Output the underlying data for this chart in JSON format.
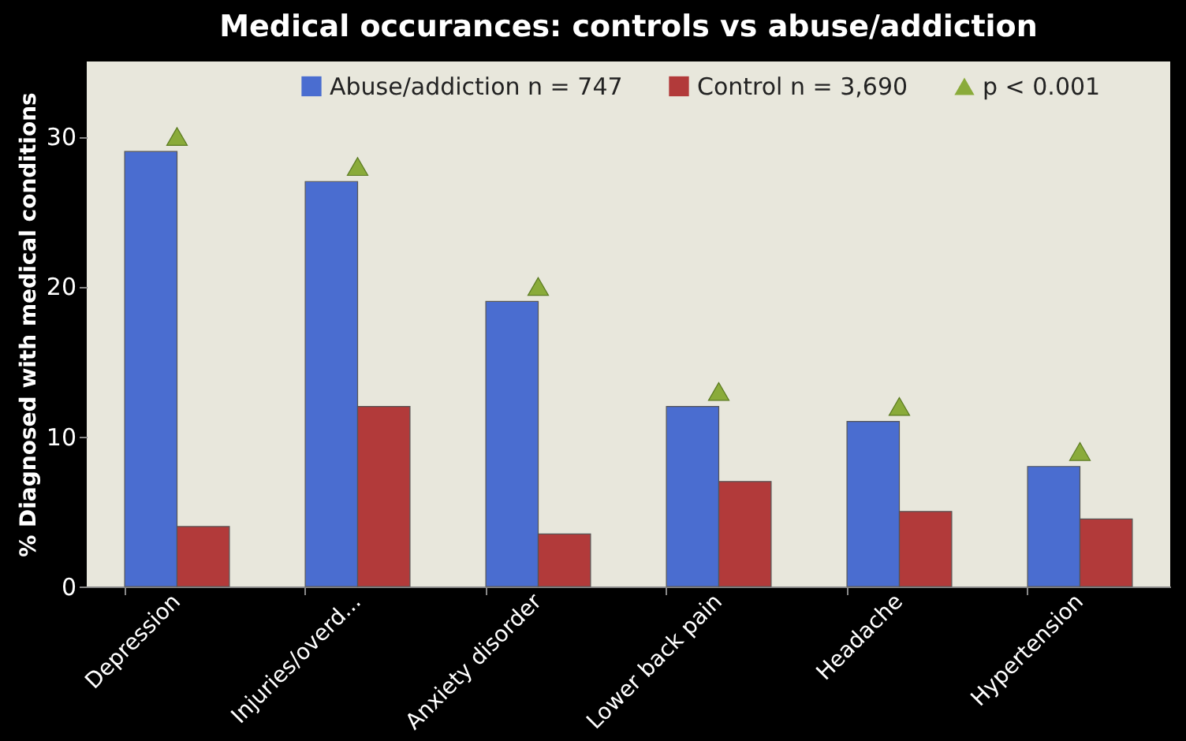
{
  "chart_data": {
    "type": "bar",
    "title": "Medical occurances: controls vs abuse/addiction",
    "ylabel": "% Diagnosed with medical conditions",
    "categories": [
      "Depression",
      "Injuries/overd...",
      "Anxiety disorder",
      "Lower back pain",
      "Headache",
      "Hypertension"
    ],
    "series": [
      {
        "name": "Abuse/addiction n = 747",
        "color": "#4a6dd0",
        "values": [
          29,
          27,
          19,
          12,
          11,
          8
        ]
      },
      {
        "name": "Control n = 3,690",
        "color": "#b23a3a",
        "values": [
          4,
          12,
          3.5,
          7,
          5,
          4.5
        ]
      },
      {
        "name": "p < 0.001",
        "type": "scatter",
        "marker": "triangle",
        "color": "#8aab3a",
        "x": [
          "Depression",
          "Injuries/overd...",
          "Anxiety disorder",
          "Lower back pain",
          "Headache",
          "Hypertension"
        ],
        "values": [
          30,
          28,
          20,
          13,
          12,
          9
        ]
      }
    ],
    "ylim": [
      0,
      35
    ],
    "yticks": [
      0,
      10,
      20,
      30
    ],
    "grid": false,
    "legend": "top"
  }
}
